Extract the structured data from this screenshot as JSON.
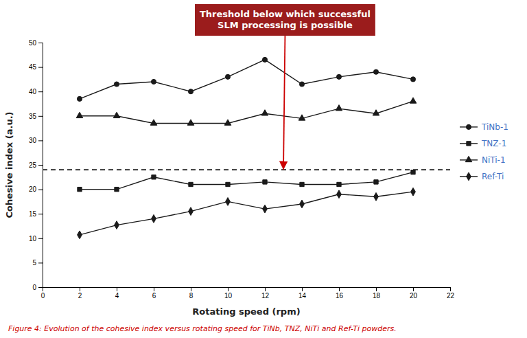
{
  "chart_data": {
    "type": "line",
    "x": [
      2,
      4,
      6,
      8,
      10,
      12,
      14,
      16,
      18,
      20
    ],
    "series": [
      {
        "name": "TiNb-1",
        "color": "#1a1a1a",
        "marker": "circle",
        "values": [
          38.5,
          41.5,
          42.0,
          40.0,
          43.0,
          46.5,
          41.5,
          43.0,
          44.0,
          42.5
        ]
      },
      {
        "name": "TNZ-1",
        "color": "#1a1a1a",
        "marker": "square",
        "values": [
          20.0,
          20.0,
          22.5,
          21.0,
          21.0,
          21.5,
          21.0,
          21.0,
          21.5,
          23.5
        ]
      },
      {
        "name": "NiTi-1",
        "color": "#1a1a1a",
        "marker": "triangle",
        "values": [
          35.0,
          35.0,
          33.5,
          33.5,
          33.5,
          35.5,
          34.5,
          36.5,
          35.5,
          38.0
        ]
      },
      {
        "name": "Ref-Ti",
        "color": "#1a1a1a",
        "marker": "diamond",
        "values": [
          10.7,
          12.7,
          14.0,
          15.5,
          17.5,
          16.0,
          17.0,
          19.0,
          18.5,
          19.5
        ]
      }
    ],
    "threshold": {
      "y": 24,
      "line_style": "dashed",
      "color": "#1a1a1a"
    },
    "xlabel": "Rotating speed (rpm)",
    "ylabel": "Cohesive index (a.u.)",
    "xlim": [
      0,
      22
    ],
    "ylim": [
      0,
      50
    ],
    "xticks": [
      0,
      2,
      4,
      6,
      8,
      10,
      12,
      14,
      16,
      18,
      20,
      22
    ],
    "yticks": [
      0,
      5,
      10,
      15,
      20,
      25,
      30,
      35,
      40,
      45,
      50
    ],
    "grid": false,
    "legend": "right",
    "legend_text_color": "#4472C4",
    "annotations": [
      {
        "text": "Threshold below which successful\nSLM processing is possible",
        "x": 13.0,
        "y": 24,
        "color": "#9B1C1C",
        "text_color": "#ffffff",
        "arrow_color": "#cc0000"
      }
    ],
    "caption": {
      "text": "Figure 4: Evolution of the cohesive index versus rotating speed for TiNb, TNZ, NiTi and Ref-Ti powders.",
      "color": "#cc0000"
    }
  }
}
